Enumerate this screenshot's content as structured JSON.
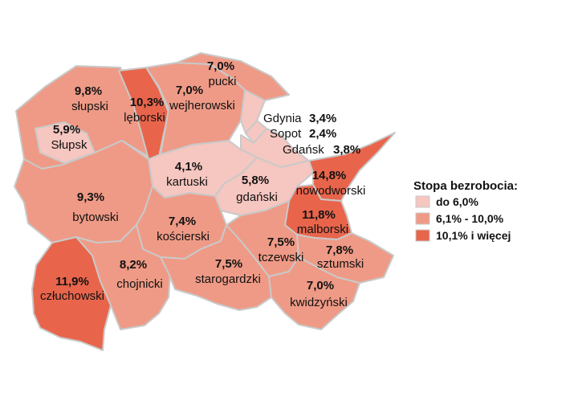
{
  "colors": {
    "low": "#f6c6c0",
    "mid": "#ef9a86",
    "high": "#e8654c",
    "border": "#c9c9c9"
  },
  "legend": {
    "title": "Stopa bezrobocia:",
    "items": [
      {
        "label": "do 6,0%",
        "class": "low"
      },
      {
        "label": "6,1% - 10,0%",
        "class": "mid"
      },
      {
        "label": "10,1% i więcej",
        "class": "high"
      }
    ]
  },
  "regions": [
    {
      "id": "slupski",
      "name": "słupski",
      "value": "9,8%",
      "class": "mid"
    },
    {
      "id": "slupsk",
      "name": "Słupsk",
      "value": "5,9%",
      "class": "low"
    },
    {
      "id": "leborski",
      "name": "lęborski",
      "value": "10,3%",
      "class": "high"
    },
    {
      "id": "wejherowski",
      "name": "wejherowski",
      "value": "7,0%",
      "class": "mid"
    },
    {
      "id": "pucki",
      "name": "pucki",
      "value": "7,0%",
      "class": "mid"
    },
    {
      "id": "gdynia",
      "name": "Gdynia",
      "value": "3,4%",
      "class": "low"
    },
    {
      "id": "sopot",
      "name": "Sopot",
      "value": "2,4%",
      "class": "low"
    },
    {
      "id": "gdansk",
      "name": "Gdańsk",
      "value": "3,8%",
      "class": "low"
    },
    {
      "id": "kartuski",
      "name": "kartuski",
      "value": "4,1%",
      "class": "low"
    },
    {
      "id": "gdanski",
      "name": "gdański",
      "value": "5,8%",
      "class": "low"
    },
    {
      "id": "nowodworski",
      "name": "nowodworski",
      "value": "14,8%",
      "class": "high"
    },
    {
      "id": "bytowski",
      "name": "bytowski",
      "value": "9,3%",
      "class": "mid"
    },
    {
      "id": "koscierski",
      "name": "kościerski",
      "value": "7,4%",
      "class": "mid"
    },
    {
      "id": "malborski",
      "name": "malborski",
      "value": "11,8%",
      "class": "high"
    },
    {
      "id": "tczewski",
      "name": "tczewski",
      "value": "7,5%",
      "class": "mid"
    },
    {
      "id": "sztumski",
      "name": "sztumski",
      "value": "7,8%",
      "class": "mid"
    },
    {
      "id": "czluchowski",
      "name": "człuchowski",
      "value": "11,9%",
      "class": "high"
    },
    {
      "id": "chojnicki",
      "name": "chojnicki",
      "value": "8,2%",
      "class": "mid"
    },
    {
      "id": "starogardzki",
      "name": "starogardzki",
      "value": "7,5%",
      "class": "mid"
    },
    {
      "id": "kwidzynski",
      "name": "kwidzyński",
      "value": "7,0%",
      "class": "mid"
    }
  ]
}
